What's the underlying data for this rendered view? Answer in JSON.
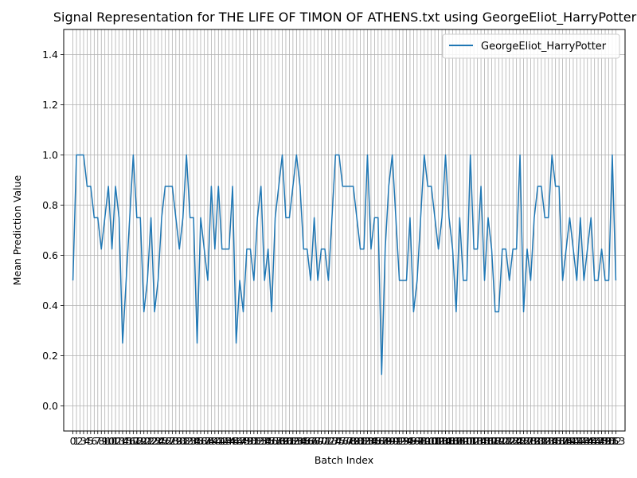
{
  "chart_data": {
    "type": "line",
    "title": "Signal Representation for THE LIFE OF TIMON OF ATHENS.txt using GeorgeEliot_HarryPotter",
    "xlabel": "Batch Index",
    "ylabel": "Mean Prediction Value",
    "ylim": [
      -0.1,
      1.5
    ],
    "xlim": [
      -2.6,
      155.6
    ],
    "grid": true,
    "legend_position": "top-right",
    "y_ticks": [
      "0.0",
      "0.2",
      "0.4",
      "0.6",
      "0.8",
      "1.0",
      "1.2",
      "1.4"
    ],
    "x_tick_label_text": "0 1 2 3 4 5 6 7 8 9 10 ... 153 (one label per batch index, labels overlap)",
    "line_color": "#1f77b4",
    "series": [
      {
        "name": "GeorgeEliot_HarryPotter",
        "x_start": 0,
        "values": [
          0.5,
          1.0,
          1.0,
          1.0,
          0.875,
          0.875,
          0.75,
          0.75,
          0.625,
          0.75,
          0.875,
          0.625,
          0.875,
          0.75,
          0.25,
          0.5,
          0.75,
          1.0,
          0.75,
          0.75,
          0.375,
          0.5,
          0.75,
          0.375,
          0.5,
          0.75,
          0.875,
          0.875,
          0.875,
          0.75,
          0.625,
          0.75,
          1.0,
          0.75,
          0.75,
          0.25,
          0.75,
          0.625,
          0.5,
          0.875,
          0.625,
          0.875,
          0.625,
          0.625,
          0.625,
          0.875,
          0.25,
          0.5,
          0.375,
          0.625,
          0.625,
          0.5,
          0.75,
          0.875,
          0.5,
          0.625,
          0.375,
          0.75,
          0.875,
          1.0,
          0.75,
          0.75,
          0.875,
          1.0,
          0.875,
          0.625,
          0.625,
          0.5,
          0.75,
          0.5,
          0.625,
          0.625,
          0.5,
          0.75,
          1.0,
          1.0,
          0.875,
          0.875,
          0.875,
          0.875,
          0.75,
          0.625,
          0.625,
          1.0,
          0.625,
          0.75,
          0.75,
          0.125,
          0.625,
          0.875,
          1.0,
          0.75,
          0.5,
          0.5,
          0.5,
          0.75,
          0.375,
          0.5,
          0.75,
          1.0,
          0.875,
          0.875,
          0.75,
          0.625,
          0.75,
          1.0,
          0.75,
          0.625,
          0.375,
          0.75,
          0.5,
          0.5,
          1.0,
          0.625,
          0.625,
          0.875,
          0.5,
          0.75,
          0.625,
          0.375,
          0.375,
          0.625,
          0.625,
          0.5,
          0.625,
          0.625,
          1.0,
          0.375,
          0.625,
          0.5,
          0.75,
          0.875,
          0.875,
          0.75,
          0.75,
          1.0,
          0.875,
          0.875,
          0.5,
          0.625,
          0.75,
          0.625,
          0.5,
          0.75,
          0.5,
          0.625,
          0.75,
          0.5,
          0.5,
          0.625,
          0.5,
          0.5,
          1.0,
          0.5
        ]
      }
    ]
  }
}
